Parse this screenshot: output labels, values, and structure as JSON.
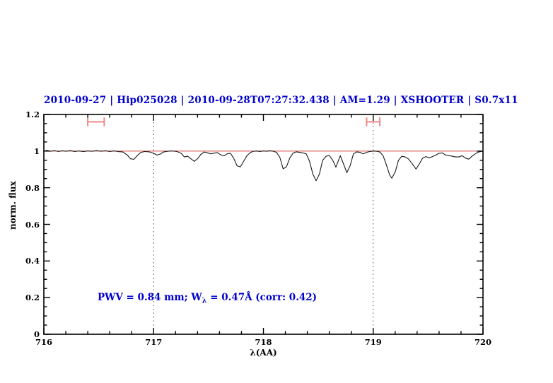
{
  "title": {
    "text": "2010-09-27 | Hip025028 | 2010-09-28T07:27:32.438 | AM=1.29 | XSHOOTER | S0.7x11",
    "color": "#0000cd"
  },
  "annotation": {
    "prefix": "PWV = 0.84 mm; W",
    "subscript": "λ",
    "suffix": " = 0.47Å (corr: 0.42)",
    "color": "#0000cd"
  },
  "axes": {
    "xlabel": "λ(AA)",
    "ylabel": "norm. flux",
    "xlim": [
      716,
      720
    ],
    "ylim": [
      0,
      1.2
    ],
    "x_major_ticks": [
      716,
      717,
      718,
      719,
      720
    ],
    "x_tick_labels": [
      "716",
      "717",
      "718",
      "719",
      "720"
    ],
    "x_minor_step": 0.2,
    "y_major_ticks": [
      0,
      0.2,
      0.4,
      0.6,
      0.8,
      1,
      1.2
    ],
    "y_tick_labels": [
      "0",
      "0.2",
      "0.4",
      "0.6",
      "0.8",
      "1",
      "1.2"
    ],
    "y_minor_step": 0.05
  },
  "reference_lines": {
    "continuum_flux": 1.0,
    "continuum_color": "#dd5555",
    "dotted_wavelengths": [
      717,
      719
    ],
    "dotted_color": "#444444"
  },
  "range_markers": {
    "color": "#ee8888",
    "items": [
      {
        "x1": 716.4,
        "x2": 716.55,
        "y": 1.16,
        "cap_half": 0.024
      },
      {
        "x1": 718.94,
        "x2": 719.06,
        "y": 1.16,
        "cap_half": 0.024
      }
    ]
  },
  "chart_data": {
    "type": "line",
    "title": "2010-09-27 | Hip025028 | 2010-09-28T07:27:32.438 | AM=1.29 | XSHOOTER | S0.7x11",
    "xlabel": "λ(AA)",
    "ylabel": "norm. flux",
    "xlim": [
      716,
      720
    ],
    "ylim": [
      0,
      1.2
    ],
    "grid": "dotted vertical lines at 717 and 719",
    "legend": "none",
    "series": [
      {
        "name": "normalized-spectrum",
        "color": "#1a1a1a",
        "x": [
          716.0,
          716.03,
          716.06,
          716.1,
          716.13,
          716.17,
          716.2,
          716.24,
          716.28,
          716.32,
          716.36,
          716.4,
          716.44,
          716.48,
          716.52,
          716.56,
          716.6,
          716.64,
          716.68,
          716.72,
          716.76,
          716.79,
          716.82,
          716.85,
          716.88,
          716.92,
          716.96,
          717.0,
          717.03,
          717.06,
          717.09,
          717.13,
          717.17,
          717.21,
          717.25,
          717.28,
          717.31,
          717.34,
          717.37,
          717.4,
          717.43,
          717.46,
          717.49,
          717.52,
          717.55,
          717.58,
          717.61,
          717.64,
          717.67,
          717.7,
          717.73,
          717.76,
          717.79,
          717.82,
          717.85,
          717.88,
          717.91,
          717.94,
          717.97,
          718.0,
          718.03,
          718.06,
          718.09,
          718.12,
          718.15,
          718.18,
          718.21,
          718.24,
          718.27,
          718.3,
          718.33,
          718.36,
          718.39,
          718.42,
          718.45,
          718.48,
          718.51,
          718.54,
          718.57,
          718.6,
          718.63,
          718.66,
          718.7,
          718.73,
          718.76,
          718.79,
          718.82,
          718.85,
          718.88,
          718.91,
          718.94,
          718.97,
          719.0,
          719.03,
          719.06,
          719.09,
          719.12,
          719.15,
          719.17,
          719.2,
          719.23,
          719.26,
          719.29,
          719.32,
          719.35,
          719.39,
          719.42,
          719.45,
          719.48,
          719.51,
          719.54,
          719.57,
          719.6,
          719.63,
          719.66,
          719.69,
          719.72,
          719.75,
          719.78,
          719.81,
          719.84,
          719.87,
          719.9,
          719.93,
          719.96,
          720.0
        ],
        "y": [
          1.0,
          1.004,
          0.999,
          1.003,
          0.998,
          1.002,
          0.999,
          1.003,
          0.998,
          1.001,
          0.997,
          1.001,
          0.999,
          1.003,
          0.999,
          1.002,
          0.998,
          1.001,
          0.997,
          0.995,
          0.978,
          0.958,
          0.955,
          0.975,
          0.992,
          0.998,
          0.996,
          0.988,
          0.978,
          0.984,
          0.995,
          0.999,
          1.001,
          0.998,
          0.988,
          0.968,
          0.972,
          0.958,
          0.944,
          0.958,
          0.982,
          0.995,
          0.991,
          0.985,
          0.989,
          0.992,
          0.98,
          0.974,
          0.985,
          0.988,
          0.96,
          0.92,
          0.914,
          0.945,
          0.975,
          0.992,
          0.999,
          1.0,
          0.998,
          1.001,
          0.999,
          1.002,
          0.999,
          0.993,
          0.965,
          0.903,
          0.915,
          0.962,
          0.989,
          0.996,
          0.993,
          0.99,
          0.985,
          0.945,
          0.875,
          0.838,
          0.875,
          0.95,
          0.972,
          0.976,
          0.952,
          0.912,
          0.975,
          0.93,
          0.882,
          0.92,
          0.985,
          0.996,
          0.993,
          0.985,
          0.993,
          0.998,
          1.0,
          0.999,
          0.995,
          0.975,
          0.925,
          0.87,
          0.852,
          0.885,
          0.95,
          0.972,
          0.968,
          0.958,
          0.935,
          0.902,
          0.93,
          0.962,
          0.97,
          0.963,
          0.97,
          0.978,
          0.988,
          0.99,
          0.978,
          0.975,
          0.972,
          0.968,
          0.968,
          0.975,
          0.962,
          0.956,
          0.972,
          0.985,
          0.995,
          1.0
        ]
      }
    ],
    "annotations": [
      {
        "text": "PWV = 0.84 mm; Wλ = 0.47Å (corr: 0.42)",
        "x": 716.5,
        "y": 0.2
      },
      {
        "text": "range marker",
        "x1": 716.4,
        "x2": 716.55,
        "y": 1.16
      },
      {
        "text": "range marker",
        "x1": 718.94,
        "x2": 719.06,
        "y": 1.16
      }
    ]
  }
}
